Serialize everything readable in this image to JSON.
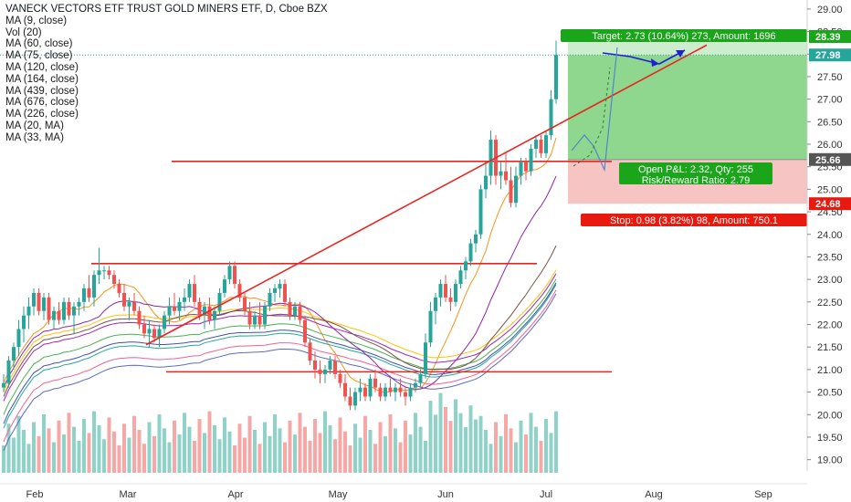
{
  "header": {
    "title": "VANECK VECTORS ETF TRUST GOLD MINERS ETF, D, Cboe BZX",
    "indicators": [
      "MA (9, close)",
      "Vol (20)",
      "MA (60, close)",
      "MA (75, close)",
      "MA (120, close)",
      "MA (164, close)",
      "MA (439, close)",
      "MA (676, close)",
      "MA (226, close)",
      "MA (20, MA)",
      "MA (33, MA)"
    ]
  },
  "colors": {
    "up": "#26a69a",
    "down": "#ef5350",
    "trendline": "#e8251f",
    "target_zone": "#8fd68f",
    "target_zone_light": "#cdeecd",
    "stop_zone": "#f7c4c4",
    "target_label_bg": "#1aa51a",
    "stop_label_bg": "#e8190f",
    "current_price_line": "#26a69a",
    "projection_arrow": "#1f1fd6"
  },
  "chart_data": {
    "type": "candlestick",
    "title": "VANECK VECTORS ETF TRUST GOLD MINERS ETF, D, Cboe BZX",
    "x_ticks": [
      "Feb",
      "Mar",
      "Apr",
      "May",
      "Jun",
      "Jul",
      "Aug",
      "Sep"
    ],
    "y_ticks": [
      "19.00",
      "19.50",
      "20.00",
      "20.50",
      "21.00",
      "21.50",
      "22.00",
      "22.50",
      "23.00",
      "23.50",
      "24.00",
      "24.50",
      "25.00",
      "25.50",
      "26.00",
      "26.50",
      "27.00",
      "27.50",
      "28.00",
      "28.50",
      "29.00"
    ],
    "ylim": [
      18.75,
      29.2
    ],
    "price_scale": "right",
    "grid": false,
    "last_price": 27.98,
    "candles_ohlc": [
      [
        20.6,
        20.9,
        20.5,
        20.7
      ],
      [
        20.7,
        21.3,
        20.6,
        21.2
      ],
      [
        21.2,
        21.6,
        21.0,
        21.5
      ],
      [
        21.5,
        22.1,
        21.3,
        21.9
      ],
      [
        21.9,
        22.4,
        21.6,
        22.2
      ],
      [
        22.2,
        22.6,
        21.9,
        22.4
      ],
      [
        22.4,
        22.8,
        22.2,
        22.7
      ],
      [
        22.7,
        22.8,
        22.2,
        22.3
      ],
      [
        22.3,
        22.7,
        22.1,
        22.6
      ],
      [
        22.6,
        22.7,
        22.0,
        22.1
      ],
      [
        22.1,
        22.4,
        21.9,
        22.3
      ],
      [
        22.3,
        22.5,
        22.0,
        22.1
      ],
      [
        22.1,
        22.6,
        22.0,
        22.5
      ],
      [
        22.5,
        22.6,
        22.1,
        22.2
      ],
      [
        22.2,
        22.5,
        21.8,
        22.4
      ],
      [
        22.4,
        22.6,
        22.2,
        22.5
      ],
      [
        22.5,
        22.9,
        22.3,
        22.8
      ],
      [
        22.8,
        23.1,
        22.5,
        22.6
      ],
      [
        22.6,
        23.2,
        22.4,
        23.1
      ],
      [
        23.1,
        23.7,
        22.9,
        23.2
      ],
      [
        23.2,
        23.3,
        23.0,
        23.2
      ],
      [
        23.2,
        23.3,
        23.0,
        23.1
      ],
      [
        23.1,
        23.2,
        22.8,
        22.9
      ],
      [
        22.9,
        23.0,
        22.6,
        22.7
      ],
      [
        22.7,
        22.9,
        22.3,
        22.4
      ],
      [
        22.4,
        22.6,
        22.1,
        22.5
      ],
      [
        22.5,
        22.7,
        22.2,
        22.3
      ],
      [
        22.3,
        22.4,
        21.9,
        22.0
      ],
      [
        22.0,
        22.2,
        21.7,
        21.8
      ],
      [
        21.8,
        22.1,
        21.5,
        21.9
      ],
      [
        21.9,
        22.0,
        21.6,
        21.7
      ],
      [
        21.7,
        22.0,
        21.5,
        21.9
      ],
      [
        21.9,
        22.3,
        21.8,
        22.2
      ],
      [
        22.2,
        22.6,
        22.0,
        22.4
      ],
      [
        22.4,
        22.7,
        22.2,
        22.3
      ],
      [
        22.3,
        22.6,
        22.1,
        22.5
      ],
      [
        22.5,
        22.8,
        22.3,
        22.6
      ],
      [
        22.6,
        23.0,
        22.5,
        22.9
      ],
      [
        22.9,
        23.1,
        22.4,
        22.5
      ],
      [
        22.5,
        22.6,
        22.1,
        22.2
      ],
      [
        22.2,
        22.5,
        21.9,
        22.4
      ],
      [
        22.4,
        22.6,
        22.0,
        22.1
      ],
      [
        22.1,
        22.4,
        21.9,
        22.3
      ],
      [
        22.3,
        22.8,
        22.2,
        22.7
      ],
      [
        22.7,
        23.1,
        22.6,
        23.0
      ],
      [
        23.0,
        23.4,
        22.9,
        23.3
      ],
      [
        23.3,
        23.4,
        22.8,
        22.9
      ],
      [
        22.9,
        23.0,
        22.5,
        22.6
      ],
      [
        22.6,
        22.7,
        22.2,
        22.3
      ],
      [
        22.3,
        22.5,
        21.9,
        22.0
      ],
      [
        22.0,
        22.3,
        21.9,
        22.2
      ],
      [
        22.2,
        22.5,
        21.9,
        22.0
      ],
      [
        22.0,
        22.5,
        21.9,
        22.4
      ],
      [
        22.4,
        22.8,
        22.3,
        22.7
      ],
      [
        22.7,
        22.9,
        22.5,
        22.8
      ],
      [
        22.8,
        23.0,
        22.6,
        22.9
      ],
      [
        22.9,
        23.0,
        22.4,
        22.5
      ],
      [
        22.5,
        22.6,
        22.1,
        22.2
      ],
      [
        22.2,
        22.5,
        22.1,
        22.4
      ],
      [
        22.4,
        22.5,
        22.0,
        22.1
      ],
      [
        22.1,
        22.2,
        21.5,
        21.6
      ],
      [
        21.6,
        21.7,
        21.1,
        21.2
      ],
      [
        21.2,
        21.4,
        20.8,
        21.0
      ],
      [
        21.0,
        21.2,
        20.7,
        20.9
      ],
      [
        20.9,
        21.1,
        20.7,
        21.0
      ],
      [
        21.0,
        21.3,
        20.9,
        21.2
      ],
      [
        21.2,
        21.3,
        20.8,
        20.9
      ],
      [
        20.9,
        21.0,
        20.6,
        20.7
      ],
      [
        20.7,
        20.9,
        20.3,
        20.4
      ],
      [
        20.4,
        20.6,
        20.1,
        20.2
      ],
      [
        20.2,
        20.6,
        20.1,
        20.5
      ],
      [
        20.5,
        20.8,
        20.3,
        20.6
      ],
      [
        20.6,
        20.7,
        20.3,
        20.4
      ],
      [
        20.4,
        20.9,
        20.3,
        20.8
      ],
      [
        20.8,
        21.0,
        20.5,
        20.6
      ],
      [
        20.6,
        20.7,
        20.3,
        20.4
      ],
      [
        20.4,
        20.7,
        20.3,
        20.6
      ],
      [
        20.6,
        20.8,
        20.4,
        20.5
      ],
      [
        20.5,
        20.7,
        20.3,
        20.6
      ],
      [
        20.6,
        20.8,
        20.4,
        20.5
      ],
      [
        20.5,
        20.6,
        20.2,
        20.4
      ],
      [
        20.4,
        20.7,
        20.3,
        20.6
      ],
      [
        20.6,
        20.8,
        20.5,
        20.7
      ],
      [
        20.7,
        21.0,
        20.6,
        20.9
      ],
      [
        20.9,
        21.8,
        20.8,
        21.6
      ],
      [
        21.6,
        22.5,
        21.5,
        22.3
      ],
      [
        22.3,
        22.7,
        22.0,
        22.6
      ],
      [
        22.6,
        23.0,
        22.4,
        22.9
      ],
      [
        22.9,
        23.1,
        22.5,
        22.6
      ],
      [
        22.6,
        22.8,
        22.3,
        22.5
      ],
      [
        22.5,
        23.0,
        22.4,
        22.9
      ],
      [
        22.9,
        23.3,
        22.8,
        23.2
      ],
      [
        23.2,
        23.5,
        23.0,
        23.4
      ],
      [
        23.4,
        23.9,
        23.3,
        23.8
      ],
      [
        23.8,
        24.1,
        23.6,
        24.0
      ],
      [
        24.0,
        25.1,
        23.9,
        25.0
      ],
      [
        25.0,
        25.6,
        24.8,
        25.3
      ],
      [
        25.3,
        26.3,
        25.1,
        26.1
      ],
      [
        26.1,
        26.2,
        25.1,
        25.3
      ],
      [
        25.3,
        25.6,
        25.0,
        25.4
      ],
      [
        25.4,
        25.8,
        25.1,
        25.2
      ],
      [
        25.2,
        25.5,
        24.6,
        24.7
      ],
      [
        24.7,
        25.5,
        24.6,
        25.3
      ],
      [
        25.3,
        25.7,
        25.1,
        25.6
      ],
      [
        25.6,
        25.7,
        25.2,
        25.4
      ],
      [
        25.4,
        26.0,
        25.3,
        25.9
      ],
      [
        25.9,
        26.2,
        25.7,
        26.1
      ],
      [
        26.1,
        26.2,
        25.7,
        25.8
      ],
      [
        25.8,
        26.3,
        25.7,
        26.2
      ],
      [
        26.2,
        27.2,
        26.1,
        27.0
      ],
      [
        27.0,
        28.3,
        26.9,
        27.98
      ]
    ],
    "moving_average_lines": [
      {
        "name": "MA (9, close)",
        "color": "#f7931e"
      },
      {
        "name": "MA (60, close)",
        "color": "#ffc107"
      },
      {
        "name": "MA (75, close)",
        "color": "#9c27b0"
      },
      {
        "name": "MA (120, close)",
        "color": "#4caf50"
      },
      {
        "name": "MA (164, close)",
        "color": "#26a69a"
      },
      {
        "name": "MA (439, close)",
        "color": "#f06292"
      },
      {
        "name": "MA (676, close)",
        "color": "#5c6bc0"
      },
      {
        "name": "MA (226, close)",
        "color": "#3f51b5"
      },
      {
        "name": "MA (20, MA)",
        "color": "#8e24aa"
      },
      {
        "name": "MA (33, MA)",
        "color": "#795548"
      }
    ],
    "horizontal_levels": [
      23.35,
      20.95,
      25.62
    ],
    "trendline": {
      "from": [
        21.55,
        "Mar"
      ],
      "to": [
        28.2,
        "Aug"
      ]
    },
    "position": {
      "type": "long",
      "entry": 25.66,
      "target": 28.39,
      "stop": 24.68,
      "target_label": "Target: 2.73 (10.64%) 273, Amount: 1696",
      "pnl_label": "Open P&L: 2.32, Qty: 255",
      "rr_label": "Risk/Reward Ratio: 2.79",
      "stop_label": "Stop: 0.98 (3.82%) 98, Amount: 750.1"
    },
    "axis_tags": [
      "28.39",
      "27.98",
      "25.66",
      "24.68"
    ]
  }
}
